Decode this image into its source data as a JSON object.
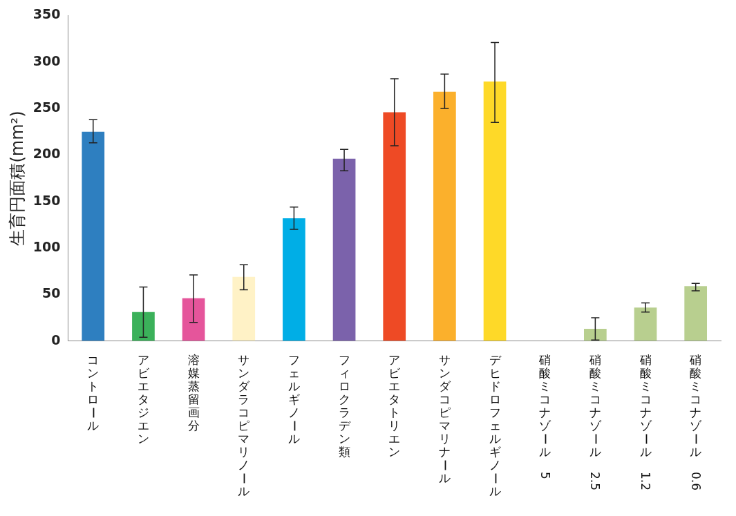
{
  "chart_data": {
    "type": "bar",
    "ylabel": "生育円面積(mm²)",
    "categories": [
      "コントロール",
      "アビエタジエン",
      "溶媒蒸留画分",
      "サンダラコピマリノール",
      "フェルギノール",
      "フィロクラデン類",
      "アビエタトリエン",
      "サンダコピマリナール",
      "デヒドロフェルギノール",
      "硝酸ミコナゾール　5",
      "硝酸ミコナゾール　2.5",
      "硝酸ミコナゾール　1.2",
      "硝酸ミコナゾール　0.6"
    ],
    "values": [
      225,
      31,
      46,
      69,
      132,
      196,
      246,
      268,
      279,
      0,
      13,
      36,
      59
    ],
    "errors": [
      [
        213,
        238
      ],
      [
        4,
        58
      ],
      [
        20,
        71
      ],
      [
        55,
        82
      ],
      [
        120,
        144
      ],
      [
        183,
        206
      ],
      [
        210,
        282
      ],
      [
        250,
        287
      ],
      [
        235,
        321
      ],
      null,
      [
        1,
        25
      ],
      [
        31,
        41
      ],
      [
        54,
        62
      ]
    ],
    "colors": [
      "#2e7fc0",
      "#3bb15a",
      "#e5559b",
      "#fff2c6",
      "#00aee6",
      "#7b62ab",
      "#ee4a25",
      "#fbb02c",
      "#fed928",
      "#b8cf8f",
      "#b8cf8f",
      "#b8cf8f",
      "#b8cf8f"
    ],
    "ylim": [
      0,
      350
    ],
    "yticks": [
      0,
      50,
      100,
      150,
      200,
      250,
      300,
      350
    ],
    "grid": false,
    "legend": false
  }
}
